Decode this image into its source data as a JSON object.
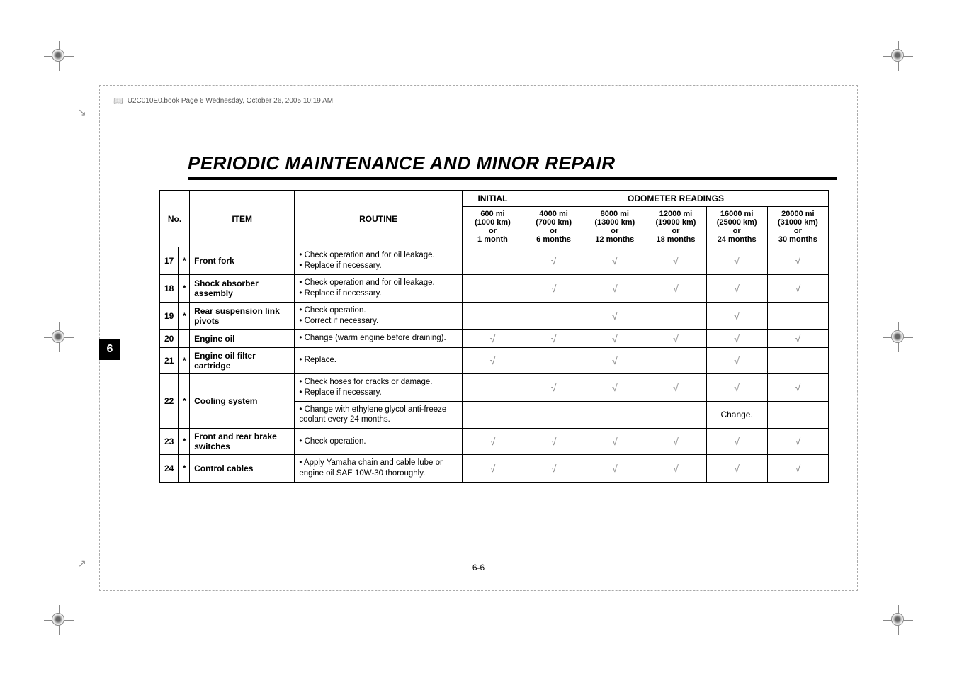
{
  "header_text": "U2C010E0.book  Page 6  Wednesday, October 26, 2005  10:19 AM",
  "title": "PERIODIC MAINTENANCE AND MINOR REPAIR",
  "tab_number": "6",
  "page_number": "6-6",
  "check_glyph": "√",
  "columns": {
    "no": "No.",
    "item": "ITEM",
    "routine": "ROUTINE",
    "initial": "INITIAL",
    "odometer": "ODOMETER READINGS",
    "headers": [
      "600 mi\n(1000 km)\nor\n1 month",
      "4000 mi\n(7000 km)\nor\n6 months",
      "8000 mi\n(13000 km)\nor\n12 months",
      "12000 mi\n(19000 km)\nor\n18 months",
      "16000 mi\n(25000 km)\nor\n24 months",
      "20000 mi\n(31000 km)\nor\n30 months"
    ]
  },
  "change_text": "Change.",
  "rows": [
    {
      "no": "17",
      "star": "*",
      "item": "Front fork",
      "routine": "• Check operation and for oil leakage.\n• Replace if necessary.",
      "checks": [
        "",
        "√",
        "√",
        "√",
        "√",
        "√"
      ]
    },
    {
      "no": "18",
      "star": "*",
      "item": "Shock absorber assembly",
      "routine": "• Check operation and for oil leakage.\n• Replace if necessary.",
      "checks": [
        "",
        "√",
        "√",
        "√",
        "√",
        "√"
      ]
    },
    {
      "no": "19",
      "star": "*",
      "item": "Rear suspension link pivots",
      "routine": "• Check operation.\n• Correct if necessary.",
      "checks": [
        "",
        "",
        "√",
        "",
        "√",
        ""
      ]
    },
    {
      "no": "20",
      "star": "",
      "item": "Engine oil",
      "routine": "• Change (warm engine before draining).",
      "checks": [
        "√",
        "√",
        "√",
        "√",
        "√",
        "√"
      ]
    },
    {
      "no": "21",
      "star": "*",
      "item": "Engine oil filter cartridge",
      "routine": "• Replace.",
      "checks": [
        "√",
        "",
        "√",
        "",
        "√",
        ""
      ]
    },
    {
      "no": "22",
      "star": "*",
      "item": "Cooling system",
      "routine": "• Check hoses for cracks or damage.\n• Replace if necessary.",
      "checks": [
        "",
        "√",
        "√",
        "√",
        "√",
        "√"
      ],
      "extra_routine": "• Change with ethylene glycol anti-freeze coolant every 24 months.",
      "extra_checks": [
        "",
        "",
        "",
        "",
        "Change.",
        ""
      ]
    },
    {
      "no": "23",
      "star": "*",
      "item": "Front and rear brake switches",
      "routine": "• Check operation.",
      "checks": [
        "√",
        "√",
        "√",
        "√",
        "√",
        "√"
      ]
    },
    {
      "no": "24",
      "star": "*",
      "item": "Control cables",
      "routine": "• Apply Yamaha chain and cable lube or engine oil SAE 10W-30 thoroughly.",
      "checks": [
        "√",
        "√",
        "√",
        "√",
        "√",
        "√"
      ]
    }
  ]
}
